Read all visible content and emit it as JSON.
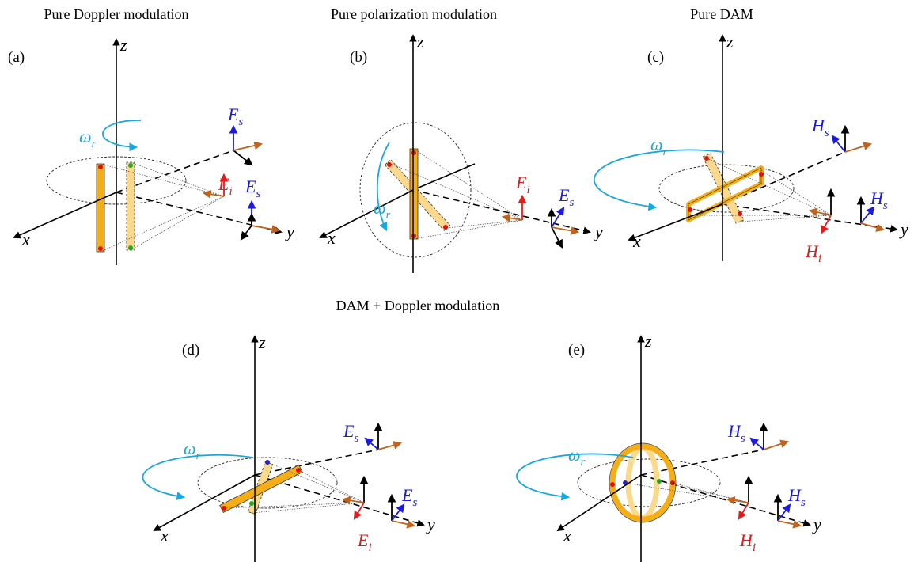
{
  "titles": {
    "a": "Pure Doppler modulation",
    "b": "Pure polarization modulation",
    "c": "Pure DAM",
    "bottom": "DAM + Doppler modulation"
  },
  "panels": [
    {
      "label": "(a)",
      "axes": {
        "x": "x",
        "y": "y",
        "z": "z"
      },
      "rotation": {
        "symbol": "ω",
        "sub": "r"
      },
      "vectors": [
        {
          "symbol": "E",
          "sub": "s"
        },
        {
          "symbol": "E",
          "sub": "i"
        },
        {
          "symbol": "E",
          "sub": "s"
        }
      ]
    },
    {
      "label": "(b)",
      "axes": {
        "x": "x",
        "y": "y",
        "z": "z"
      },
      "rotation": {
        "symbol": "ω",
        "sub": "r"
      },
      "vectors": [
        {
          "symbol": "E",
          "sub": "i"
        },
        {
          "symbol": "E",
          "sub": "s"
        }
      ]
    },
    {
      "label": "(c)",
      "axes": {
        "x": "x",
        "y": "y",
        "z": "z"
      },
      "rotation": {
        "symbol": "ω",
        "sub": "r"
      },
      "vectors": [
        {
          "symbol": "H",
          "sub": "s"
        },
        {
          "symbol": "H",
          "sub": "i"
        },
        {
          "symbol": "H",
          "sub": "s"
        }
      ]
    },
    {
      "label": "(d)",
      "axes": {
        "x": "x",
        "y": "y",
        "z": "z"
      },
      "rotation": {
        "symbol": "ω",
        "sub": "r"
      },
      "vectors": [
        {
          "symbol": "E",
          "sub": "s"
        },
        {
          "symbol": "E",
          "sub": "i"
        },
        {
          "symbol": "E",
          "sub": "s"
        }
      ]
    },
    {
      "label": "(e)",
      "axes": {
        "x": "x",
        "y": "y",
        "z": "z"
      },
      "rotation": {
        "symbol": "ω",
        "sub": "r"
      },
      "vectors": [
        {
          "symbol": "H",
          "sub": "s"
        },
        {
          "symbol": "H",
          "sub": "i"
        },
        {
          "symbol": "H",
          "sub": "s"
        }
      ]
    }
  ]
}
